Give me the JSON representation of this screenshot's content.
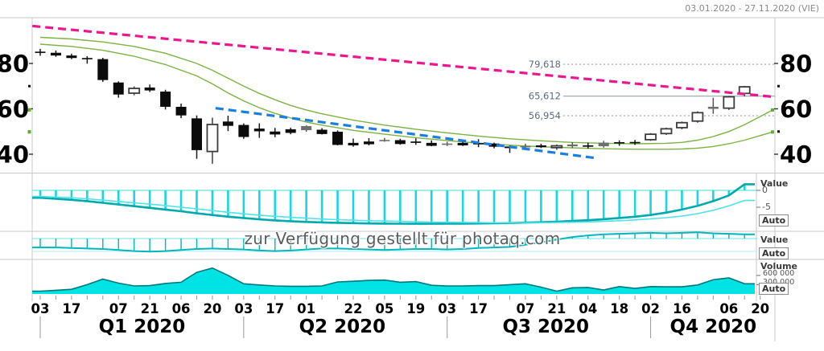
{
  "header": {
    "date_range": "03.01.2020 - 27.11.2020 (VIE)"
  },
  "watermark": "zur Verfügung gestellt für photaq.com",
  "side": {
    "value_label": "Value",
    "volume_label": "Volume",
    "auto_label": "Auto",
    "indicator1_tick_top": "0",
    "indicator1_tick_bottom": "-5",
    "volume_tick_top": "600 000",
    "volume_tick_bottom": "300 000"
  },
  "colors": {
    "pink_trendline": "#ee1690",
    "blue_trendline": "#1b7ee0",
    "green_ma": "#7cb342",
    "cyan_fill": "#00e3e5",
    "cyan_dark": "#00a9ae",
    "cyan_light": "#4fe3e8",
    "volume_outline": "#00797c",
    "level_line": "#a8b0bc",
    "level_text": "#5c6b80",
    "border": "#c9c9c9",
    "axis_text": "#000000"
  },
  "chart_data": {
    "type": "candlestick",
    "title": "",
    "date_range": "03.01.2020 - 27.11.2020 (VIE)",
    "price_panel": {
      "yticks": [
        80,
        60,
        40
      ],
      "minor_yticks": [
        70,
        50
      ],
      "ylim": [
        33,
        97
      ],
      "levels": [
        {
          "label": "79,618",
          "value": 79.618,
          "style": "dotted"
        },
        {
          "label": "65,612",
          "value": 65.612,
          "style": "solid"
        },
        {
          "label": "56,954",
          "value": 56.954,
          "style": "dotted"
        }
      ],
      "trendlines": [
        {
          "name": "resistance",
          "w1": -0.5,
          "p1": 96.5,
          "w2": 47.0,
          "p2": 65.2,
          "color": "pink"
        },
        {
          "name": "support",
          "w1": 11.2,
          "p1": 60.3,
          "w2": 35.6,
          "p2": 38.2,
          "color": "blue"
        }
      ],
      "ma_upper": [
        [
          0,
          91.5
        ],
        [
          2,
          90.8
        ],
        [
          4,
          89.5
        ],
        [
          6,
          87.5
        ],
        [
          8,
          84.5
        ],
        [
          10,
          80.0
        ],
        [
          11,
          77.0
        ],
        [
          12,
          73.5
        ],
        [
          13,
          70.0
        ],
        [
          14,
          66.8
        ],
        [
          15,
          64.0
        ],
        [
          16,
          61.5
        ],
        [
          17,
          59.5
        ],
        [
          18,
          57.8
        ],
        [
          20,
          55.0
        ],
        [
          22,
          52.8
        ],
        [
          24,
          51.0
        ],
        [
          26,
          49.4
        ],
        [
          28,
          48.0
        ],
        [
          30,
          46.8
        ],
        [
          32,
          45.9
        ],
        [
          34,
          45.2
        ],
        [
          36,
          44.8
        ],
        [
          38,
          44.6
        ],
        [
          40,
          44.8
        ],
        [
          41,
          45.2
        ],
        [
          42,
          46.2
        ],
        [
          43,
          47.8
        ],
        [
          44,
          50.0
        ],
        [
          45,
          53.0
        ],
        [
          46,
          56.6
        ],
        [
          46.8,
          59.5
        ]
      ],
      "ma_lower": [
        [
          0,
          88.5
        ],
        [
          2,
          87.5
        ],
        [
          4,
          85.8
        ],
        [
          6,
          83.2
        ],
        [
          8,
          79.5
        ],
        [
          10,
          74.5
        ],
        [
          11,
          71.0
        ],
        [
          12,
          67.0
        ],
        [
          13,
          63.5
        ],
        [
          14,
          60.5
        ],
        [
          15,
          58.0
        ],
        [
          16,
          56.0
        ],
        [
          17,
          54.2
        ],
        [
          18,
          52.8
        ],
        [
          20,
          50.5
        ],
        [
          22,
          48.8
        ],
        [
          24,
          47.3
        ],
        [
          26,
          46.0
        ],
        [
          28,
          44.9
        ],
        [
          30,
          44.0
        ],
        [
          32,
          43.3
        ],
        [
          34,
          42.8
        ],
        [
          36,
          42.4
        ],
        [
          38,
          42.2
        ],
        [
          40,
          42.2
        ],
        [
          41,
          42.3
        ],
        [
          42,
          42.7
        ],
        [
          43,
          43.4
        ],
        [
          44,
          44.6
        ],
        [
          45,
          46.2
        ],
        [
          46,
          48.2
        ],
        [
          46.8,
          49.8
        ]
      ],
      "candles": [
        [
          85.2,
          86.4,
          83.4,
          84.7,
          "b"
        ],
        [
          84.7,
          85.7,
          82.9,
          83.5,
          "b"
        ],
        [
          83.5,
          84.3,
          81.9,
          82.4,
          "b"
        ],
        [
          82.4,
          83.2,
          79.9,
          81.9,
          "b"
        ],
        [
          81.9,
          82.5,
          71.9,
          72.7,
          "b"
        ],
        [
          71.6,
          72.1,
          64.9,
          66.3,
          "b"
        ],
        [
          66.9,
          69.9,
          66.0,
          69.0,
          "w"
        ],
        [
          69.4,
          70.7,
          67.4,
          68.1,
          "b"
        ],
        [
          67.6,
          68.4,
          59.7,
          60.9,
          "b"
        ],
        [
          60.9,
          62.3,
          55.9,
          57.1,
          "b"
        ],
        [
          55.8,
          57.1,
          38.0,
          41.8,
          "b"
        ],
        [
          41.2,
          56.1,
          35.8,
          53.1,
          "w"
        ],
        [
          54.4,
          57.0,
          50.2,
          52.5,
          "b"
        ],
        [
          52.9,
          53.6,
          46.8,
          47.6,
          "b"
        ],
        [
          51.3,
          53.6,
          47.2,
          50.1,
          "b"
        ],
        [
          50.0,
          51.6,
          47.5,
          48.7,
          "b"
        ],
        [
          51.0,
          51.7,
          48.8,
          49.4,
          "b"
        ],
        [
          50.6,
          52.7,
          49.9,
          52.4,
          "g"
        ],
        [
          50.8,
          51.5,
          48.7,
          48.9,
          "b"
        ],
        [
          49.9,
          50.5,
          43.9,
          44.1,
          "b"
        ],
        [
          45.0,
          46.9,
          43.3,
          43.9,
          "b"
        ],
        [
          44.4,
          47.1,
          43.9,
          45.6,
          "b"
        ],
        [
          46.3,
          47.2,
          45.5,
          45.9,
          "g"
        ],
        [
          46.2,
          46.8,
          44.2,
          44.5,
          "b"
        ],
        [
          45.0,
          47.0,
          44.1,
          45.6,
          "b"
        ],
        [
          45.0,
          46.1,
          43.5,
          43.7,
          "b"
        ],
        [
          44.4,
          45.5,
          43.6,
          44.7,
          "g"
        ],
        [
          45.0,
          45.6,
          43.6,
          43.9,
          "b"
        ],
        [
          44.6,
          46.6,
          43.1,
          44.9,
          "b"
        ],
        [
          44.7,
          45.1,
          42.6,
          43.3,
          "b"
        ],
        [
          43.4,
          43.9,
          40.6,
          42.7,
          "b"
        ],
        [
          43.3,
          44.6,
          41.9,
          43.6,
          "g"
        ],
        [
          43.9,
          44.6,
          42.7,
          43.1,
          "b"
        ],
        [
          42.9,
          44.3,
          41.9,
          43.7,
          "w"
        ],
        [
          43.5,
          45.3,
          42.7,
          44.3,
          "g"
        ],
        [
          43.9,
          45.1,
          42.5,
          43.3,
          "b"
        ],
        [
          43.5,
          45.9,
          42.9,
          45.1,
          "g"
        ],
        [
          44.9,
          46.1,
          43.7,
          45.3,
          "b"
        ],
        [
          45.1,
          46.3,
          44.1,
          45.4,
          "b"
        ],
        [
          46.4,
          49.3,
          45.9,
          48.8,
          "w"
        ],
        [
          49.1,
          51.7,
          48.5,
          51.2,
          "w"
        ],
        [
          51.7,
          54.4,
          51.0,
          53.9,
          "w"
        ],
        [
          54.6,
          58.9,
          53.9,
          58.3,
          "w"
        ],
        [
          60.0,
          64.9,
          57.8,
          60.9,
          "g"
        ],
        [
          60.3,
          65.7,
          59.5,
          65.3,
          "w"
        ],
        [
          66.8,
          70.1,
          65.5,
          69.7,
          "w"
        ]
      ]
    },
    "indicator1": {
      "name": "Value",
      "ticks": [
        0,
        -5
      ],
      "macd": [
        -2.2,
        -2.5,
        -2.8,
        -3.2,
        -3.7,
        -4.2,
        -4.7,
        -5.2,
        -5.7,
        -6.2,
        -6.8,
        -7.3,
        -7.8,
        -8.2,
        -8.6,
        -8.9,
        -9.15,
        -9.35,
        -9.5,
        -9.62,
        -9.72,
        -9.8,
        -9.85,
        -9.88,
        -9.9,
        -9.9,
        -9.88,
        -9.85,
        -9.8,
        -9.75,
        -9.68,
        -9.58,
        -9.45,
        -9.28,
        -9.08,
        -8.85,
        -8.55,
        -8.2,
        -7.8,
        -7.3,
        -6.6,
        -5.7,
        -4.6,
        -3.2,
        -1.5,
        1.8
      ],
      "signal": [
        -1.8,
        -2.0,
        -2.2,
        -2.5,
        -2.9,
        -3.3,
        -3.7,
        -4.1,
        -4.5,
        -5.0,
        -5.5,
        -6.0,
        -6.5,
        -6.95,
        -7.35,
        -7.7,
        -8.0,
        -8.25,
        -8.5,
        -8.7,
        -8.85,
        -9.0,
        -9.1,
        -9.2,
        -9.3,
        -9.4,
        -9.45,
        -9.5,
        -9.55,
        -9.6,
        -9.62,
        -9.62,
        -9.6,
        -9.55,
        -9.45,
        -9.35,
        -9.2,
        -9.0,
        -8.75,
        -8.45,
        -8.1,
        -7.65,
        -6.9,
        -5.9,
        -4.6,
        -3.0
      ]
    },
    "indicator2": {
      "name": "Value",
      "values": [
        -0.85,
        -0.85,
        -0.9,
        -0.95,
        -1.0,
        -1.1,
        -1.2,
        -1.25,
        -1.2,
        -1.1,
        -1.0,
        -0.95,
        -1.0,
        -1.05,
        -1.15,
        -1.2,
        -1.15,
        -1.05,
        -0.95,
        -0.95,
        -1.0,
        -1.05,
        -1.1,
        -1.05,
        -1.0,
        -1.0,
        -1.05,
        -1.0,
        -0.9,
        -0.85,
        -0.8,
        -0.6,
        -0.35,
        -0.1,
        0.15,
        0.3,
        0.4,
        0.45,
        0.5,
        0.55,
        0.5,
        0.55,
        0.6,
        0.5,
        0.45,
        0.4
      ]
    },
    "volume": {
      "name": "Volume",
      "ticks": [
        600000,
        300000
      ],
      "values_thousands": [
        90,
        120,
        150,
        300,
        480,
        350,
        260,
        270,
        340,
        380,
        700,
        840,
        600,
        330,
        290,
        260,
        250,
        250,
        260,
        390,
        410,
        440,
        450,
        380,
        400,
        280,
        260,
        260,
        270,
        270,
        300,
        330,
        220,
        90,
        200,
        210,
        130,
        240,
        180,
        240,
        230,
        230,
        290,
        460,
        520,
        330
      ]
    },
    "x_axis": {
      "labels": [
        {
          "text": "03",
          "week": 0
        },
        {
          "text": "17",
          "week": 2
        },
        {
          "text": "07",
          "week": 5
        },
        {
          "text": "21",
          "week": 7
        },
        {
          "text": "06",
          "week": 9
        },
        {
          "text": "20",
          "week": 11
        },
        {
          "text": "03",
          "week": 13
        },
        {
          "text": "17",
          "week": 15
        },
        {
          "text": "01",
          "week": 17
        },
        {
          "text": "22",
          "week": 20
        },
        {
          "text": "05",
          "week": 22
        },
        {
          "text": "19",
          "week": 24
        },
        {
          "text": "03",
          "week": 26
        },
        {
          "text": "17",
          "week": 28
        },
        {
          "text": "07",
          "week": 31
        },
        {
          "text": "21",
          "week": 33
        },
        {
          "text": "04",
          "week": 35
        },
        {
          "text": "18",
          "week": 37
        },
        {
          "text": "02",
          "week": 39
        },
        {
          "text": "16",
          "week": 41
        },
        {
          "text": "06",
          "week": 44
        },
        {
          "text": "20",
          "week": 46
        }
      ],
      "quarters": [
        {
          "label": "Q1 2020",
          "sep_week": 0,
          "center_week": 6.5
        },
        {
          "label": "Q2 2020",
          "sep_week": 13,
          "center_week": 19.3
        },
        {
          "label": "Q3 2020",
          "sep_week": 26,
          "center_week": 32.3
        },
        {
          "label": "Q4 2020",
          "sep_week": 39,
          "center_week": 43.0
        }
      ]
    }
  }
}
